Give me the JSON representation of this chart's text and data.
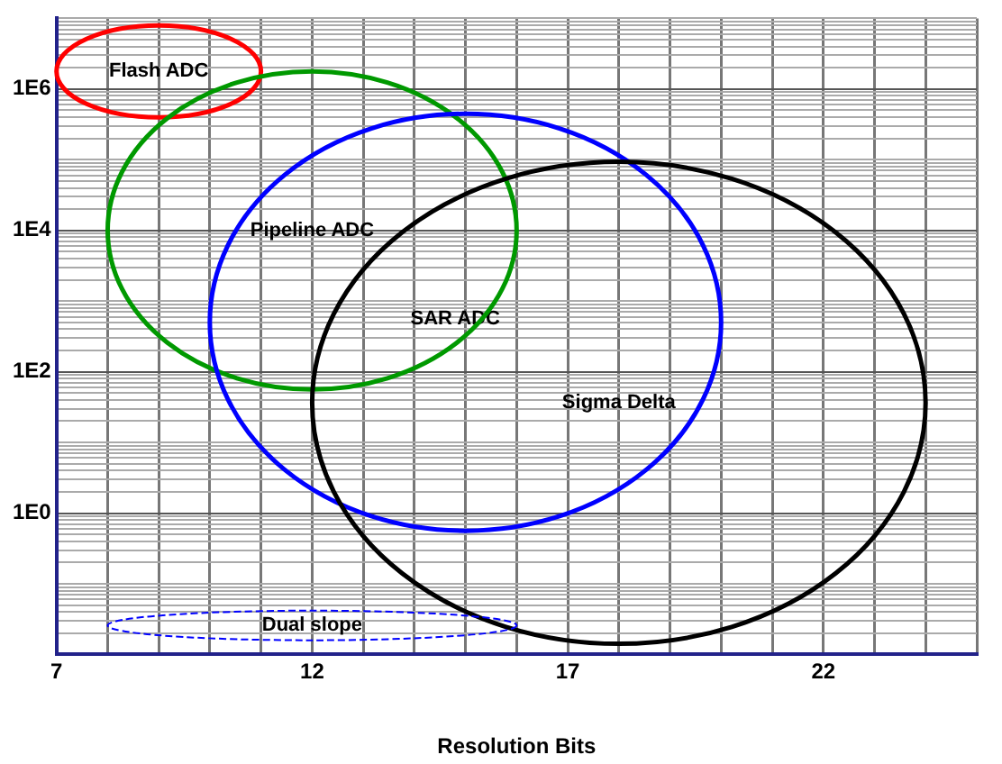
{
  "chart_data": {
    "type": "scatter",
    "xlabel": "Resolution Bits",
    "log": "y",
    "grid": true,
    "xlim": [
      7,
      25
    ],
    "xticks": [
      7,
      {
        "value": 8,
        "label": null
      },
      {
        "value": 9,
        "label": null
      },
      {
        "value": 10,
        "label": null
      },
      {
        "value": 11,
        "label": null
      },
      12,
      {
        "value": 13,
        "label": null
      },
      {
        "value": 14,
        "label": null
      },
      {
        "value": 15,
        "label": null
      },
      {
        "value": 16,
        "label": null
      },
      17,
      {
        "value": 18,
        "label": null
      },
      {
        "value": 19,
        "label": null
      },
      {
        "value": 20,
        "label": null
      },
      {
        "value": 21,
        "label": null
      },
      22,
      {
        "value": 23,
        "label": null
      },
      {
        "value": 24,
        "label": null
      },
      {
        "value": 25,
        "label": null
      }
    ],
    "ylim": [
      0.01,
      10000000
    ],
    "yticks": [
      {
        "value": 1,
        "label": "1E0"
      },
      {
        "value": 100,
        "label": "1E2"
      },
      {
        "value": 10000,
        "label": "1E4"
      },
      {
        "value": 1000000,
        "label": "1E6"
      }
    ],
    "annotations": [
      "Flash ADC",
      "Pipeline ADC",
      "SAR ADC",
      "Sigma Delta",
      "Dual slope"
    ]
  }
}
